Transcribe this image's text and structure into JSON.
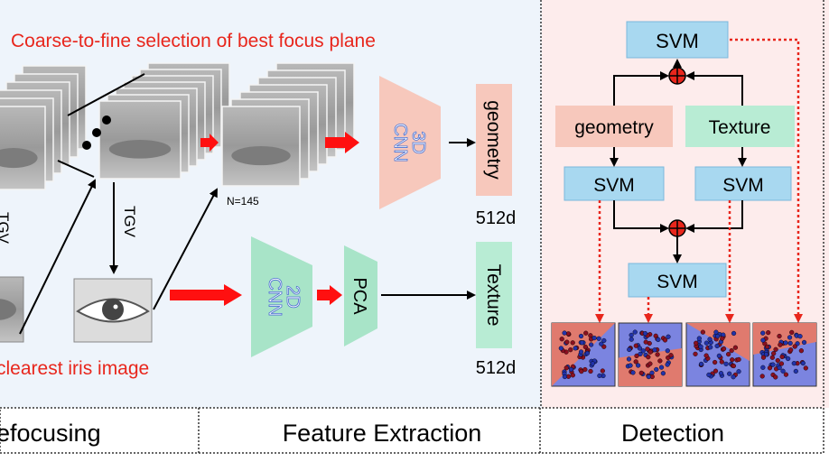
{
  "panels": {
    "refocus": {
      "caption": "Coarse-to-fine selection of best focus plane",
      "bottom_caption": "clearest iris image",
      "n_label": "N=145",
      "tgv_label": "TGV",
      "tgv_left_label": "TGV",
      "footer": "efocusing"
    },
    "feature": {
      "cnn3d": "3D\nCNN",
      "cnn2d": "2D\nCNN",
      "pca": "PCA",
      "geometry": "geometry",
      "texture": "Texture",
      "dim_top": "512d",
      "dim_bottom": "512d",
      "footer": "Feature Extraction"
    },
    "detection": {
      "svm_top": "SVM",
      "geometry": "geometry",
      "texture": "Texture",
      "svm_left": "SVM",
      "svm_right": "SVM",
      "svm_mid": "SVM",
      "footer": "Detection"
    }
  },
  "colors": {
    "red_text": "#e8261c",
    "arrow_red": "#ff1010",
    "box_blue": "#a8d8f0",
    "cnn3d_fill": "#f7c8bc",
    "cnn2d_fill": "#a8e4c8",
    "geom_fill": "#f7c8bc",
    "tex_fill": "#b8ecd4",
    "detect_bg": "#fdecec",
    "feature_bg": "#eef4fb",
    "dark_eye": "#7c7c7c"
  },
  "icons": {
    "eye": "eye-photo",
    "adder": "plus-circle-icon"
  }
}
